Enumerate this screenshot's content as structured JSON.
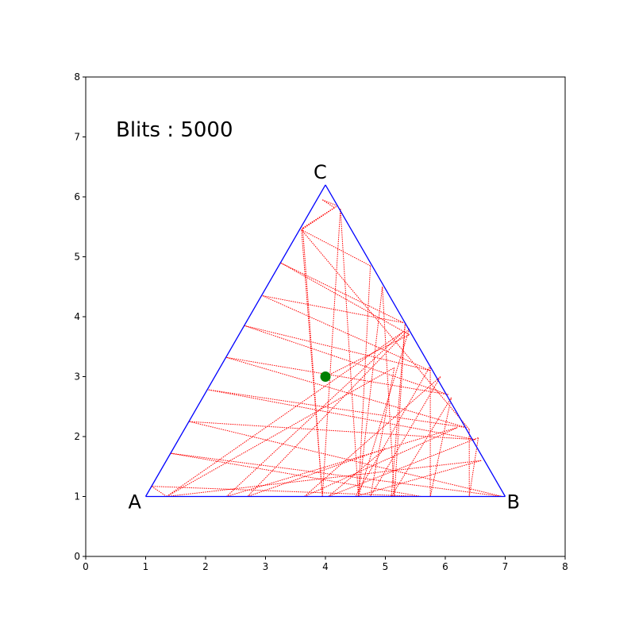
{
  "chart_data": {
    "type": "line",
    "title": "",
    "xlabel": "",
    "ylabel": "",
    "xlim": [
      0,
      8
    ],
    "ylim": [
      0,
      8
    ],
    "xticks": [
      "0",
      "1",
      "2",
      "3",
      "4",
      "5",
      "6",
      "7",
      "8"
    ],
    "yticks": [
      "0",
      "1",
      "2",
      "3",
      "4",
      "5",
      "6",
      "7",
      "8"
    ],
    "grid": false,
    "annotation": {
      "label": "Blits",
      "separator": " : ",
      "value": 5000,
      "text": "Blits : 5000"
    },
    "triangle": {
      "color": "#0000ff",
      "vertices": [
        {
          "name": "A",
          "x": 1.0,
          "y": 1.0
        },
        {
          "name": "B",
          "x": 7.0,
          "y": 1.0
        },
        {
          "name": "C",
          "x": 4.0,
          "y": 6.2
        }
      ]
    },
    "marker": {
      "x": 4.0,
      "y": 3.0,
      "color": "#007f00"
    },
    "trajectory": {
      "color": "#ff0000",
      "style": "dotted",
      "points": [
        [
          4.0,
          3.0
        ],
        [
          5.4,
          3.7
        ],
        [
          3.25,
          4.9
        ],
        [
          5.3,
          3.9
        ],
        [
          2.95,
          4.35
        ],
        [
          5.75,
          3.1
        ],
        [
          2.65,
          3.85
        ],
        [
          6.05,
          2.7
        ],
        [
          2.35,
          3.32
        ],
        [
          6.35,
          2.15
        ],
        [
          2.05,
          2.78
        ],
        [
          6.5,
          1.95
        ],
        [
          1.73,
          2.25
        ],
        [
          6.95,
          1.0
        ],
        [
          1.42,
          1.72
        ],
        [
          5.6,
          1.0
        ],
        [
          1.1,
          1.17
        ],
        [
          1.35,
          1.0
        ],
        [
          5.15,
          3.15
        ],
        [
          4.75,
          1.0
        ],
        [
          5.92,
          3.0
        ],
        [
          3.65,
          1.0
        ],
        [
          6.2,
          2.15
        ],
        [
          2.35,
          1.0
        ],
        [
          5.3,
          3.75
        ],
        [
          1.35,
          1.0
        ],
        [
          6.6,
          1.6
        ],
        [
          4.5,
          1.0
        ],
        [
          5.75,
          3.18
        ],
        [
          5.75,
          1.0
        ],
        [
          6.1,
          2.65
        ],
        [
          5.1,
          1.0
        ],
        [
          5.33,
          3.9
        ],
        [
          5.15,
          1.0
        ],
        [
          4.95,
          4.5
        ],
        [
          4.55,
          1.0
        ],
        [
          4.75,
          4.85
        ],
        [
          3.6,
          5.45
        ],
        [
          6.4,
          2.12
        ],
        [
          6.4,
          1.0
        ],
        [
          6.55,
          1.98
        ],
        [
          4.05,
          1.0
        ],
        [
          5.0,
          1.8
        ],
        [
          2.7,
          1.0
        ],
        [
          5.4,
          3.8
        ],
        [
          4.55,
          1.0
        ],
        [
          4.25,
          5.8
        ],
        [
          3.95,
          1.0
        ],
        [
          3.6,
          5.45
        ],
        [
          4.2,
          5.85
        ],
        [
          3.95,
          5.95
        ],
        [
          4.15,
          5.82
        ],
        [
          3.62,
          5.48
        ],
        [
          3.95,
          1.0
        ]
      ]
    }
  }
}
